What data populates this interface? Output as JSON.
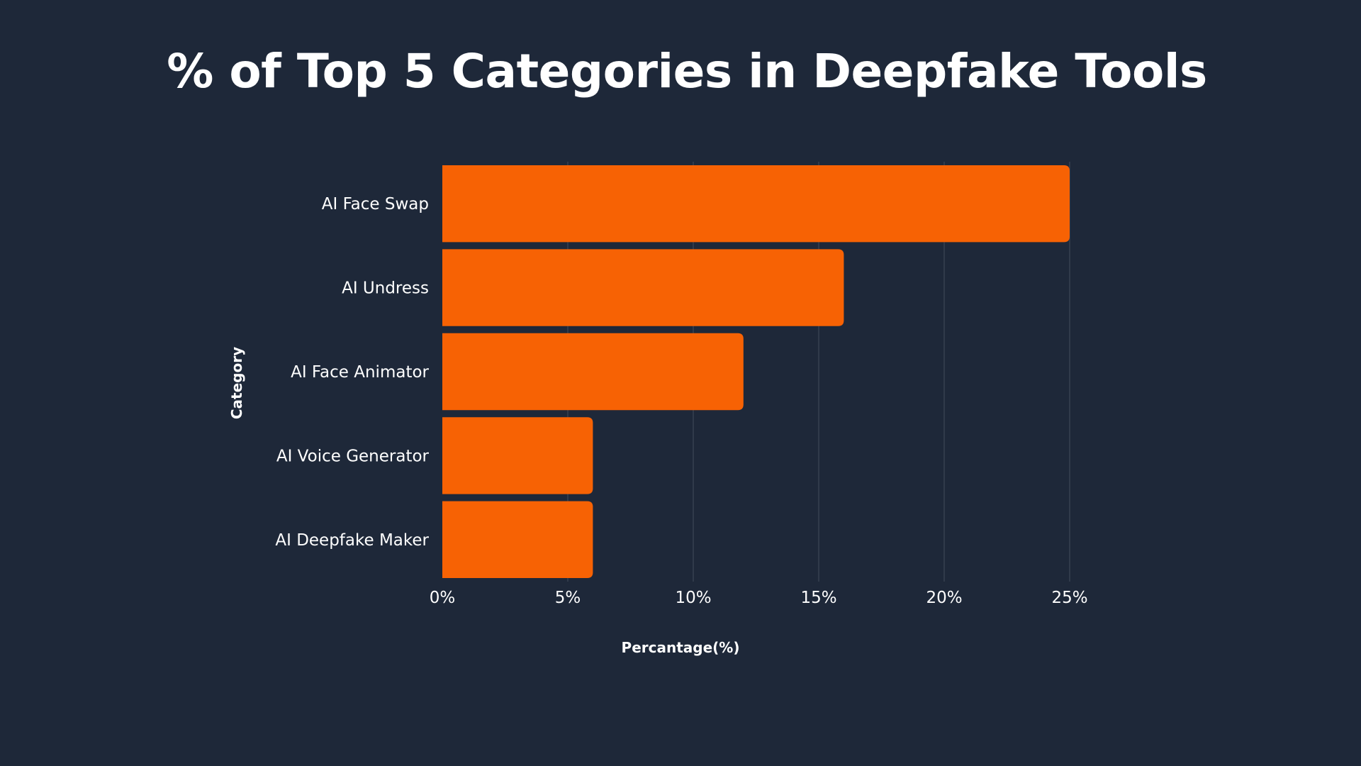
{
  "chart_data": {
    "type": "bar",
    "orientation": "horizontal",
    "title": "% of Top 5 Categories in Deepfake Tools",
    "xlabel": "Percantage(%)",
    "ylabel": "Category",
    "categories": [
      "AI Face Swap",
      "AI Undress",
      "AI Face Animator",
      "AI Voice Generator",
      "AI Deepfake Maker"
    ],
    "values": [
      25,
      16,
      12,
      6,
      6
    ],
    "xlim": [
      0,
      25
    ],
    "xticks": [
      0,
      5,
      10,
      15,
      20,
      25
    ],
    "xtick_labels": [
      "0%",
      "5%",
      "10%",
      "15%",
      "20%",
      "25%"
    ],
    "grid": "vertical",
    "legend": "none"
  },
  "colors": {
    "background": "#1e2839",
    "bar": "#f76204",
    "grid": "#3c4656",
    "text": "#ffffff"
  }
}
